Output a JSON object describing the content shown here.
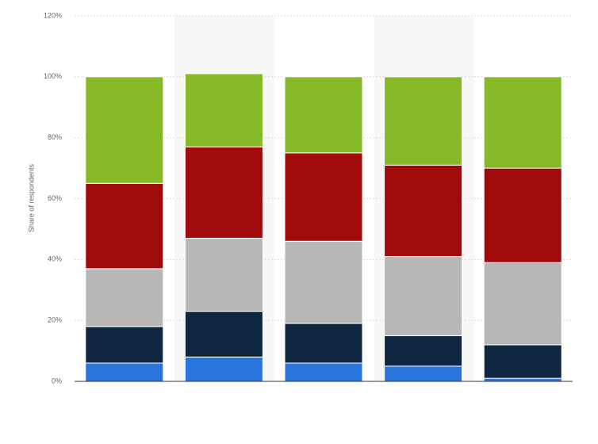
{
  "chart_data": {
    "type": "stacked-bar",
    "y_label": "Share of respondents",
    "categories": [
      null,
      null,
      null,
      null,
      null
    ],
    "series": [
      {
        "color": "#2876dd",
        "values": [
          6,
          8,
          6,
          5,
          1
        ]
      },
      {
        "color": "#0f2640",
        "values": [
          12,
          15,
          13,
          10,
          11
        ]
      },
      {
        "color": "#b7b7b7",
        "values": [
          19,
          24,
          27,
          26,
          27
        ]
      },
      {
        "color": "#a10a0a",
        "values": [
          28,
          30,
          29,
          30,
          31
        ]
      },
      {
        "color": "#86b927",
        "values": [
          35,
          24,
          25,
          29,
          30
        ]
      }
    ],
    "ylim": [
      0,
      120
    ],
    "yticks": [
      {
        "value": 0,
        "label": "0%"
      },
      {
        "value": 20,
        "label": "20%"
      },
      {
        "value": 40,
        "label": "40%"
      },
      {
        "value": 60,
        "label": "60%"
      },
      {
        "value": 80,
        "label": "80%"
      },
      {
        "value": 100,
        "label": "100%"
      },
      {
        "value": 120,
        "label": "120%"
      }
    ],
    "grid": true
  }
}
